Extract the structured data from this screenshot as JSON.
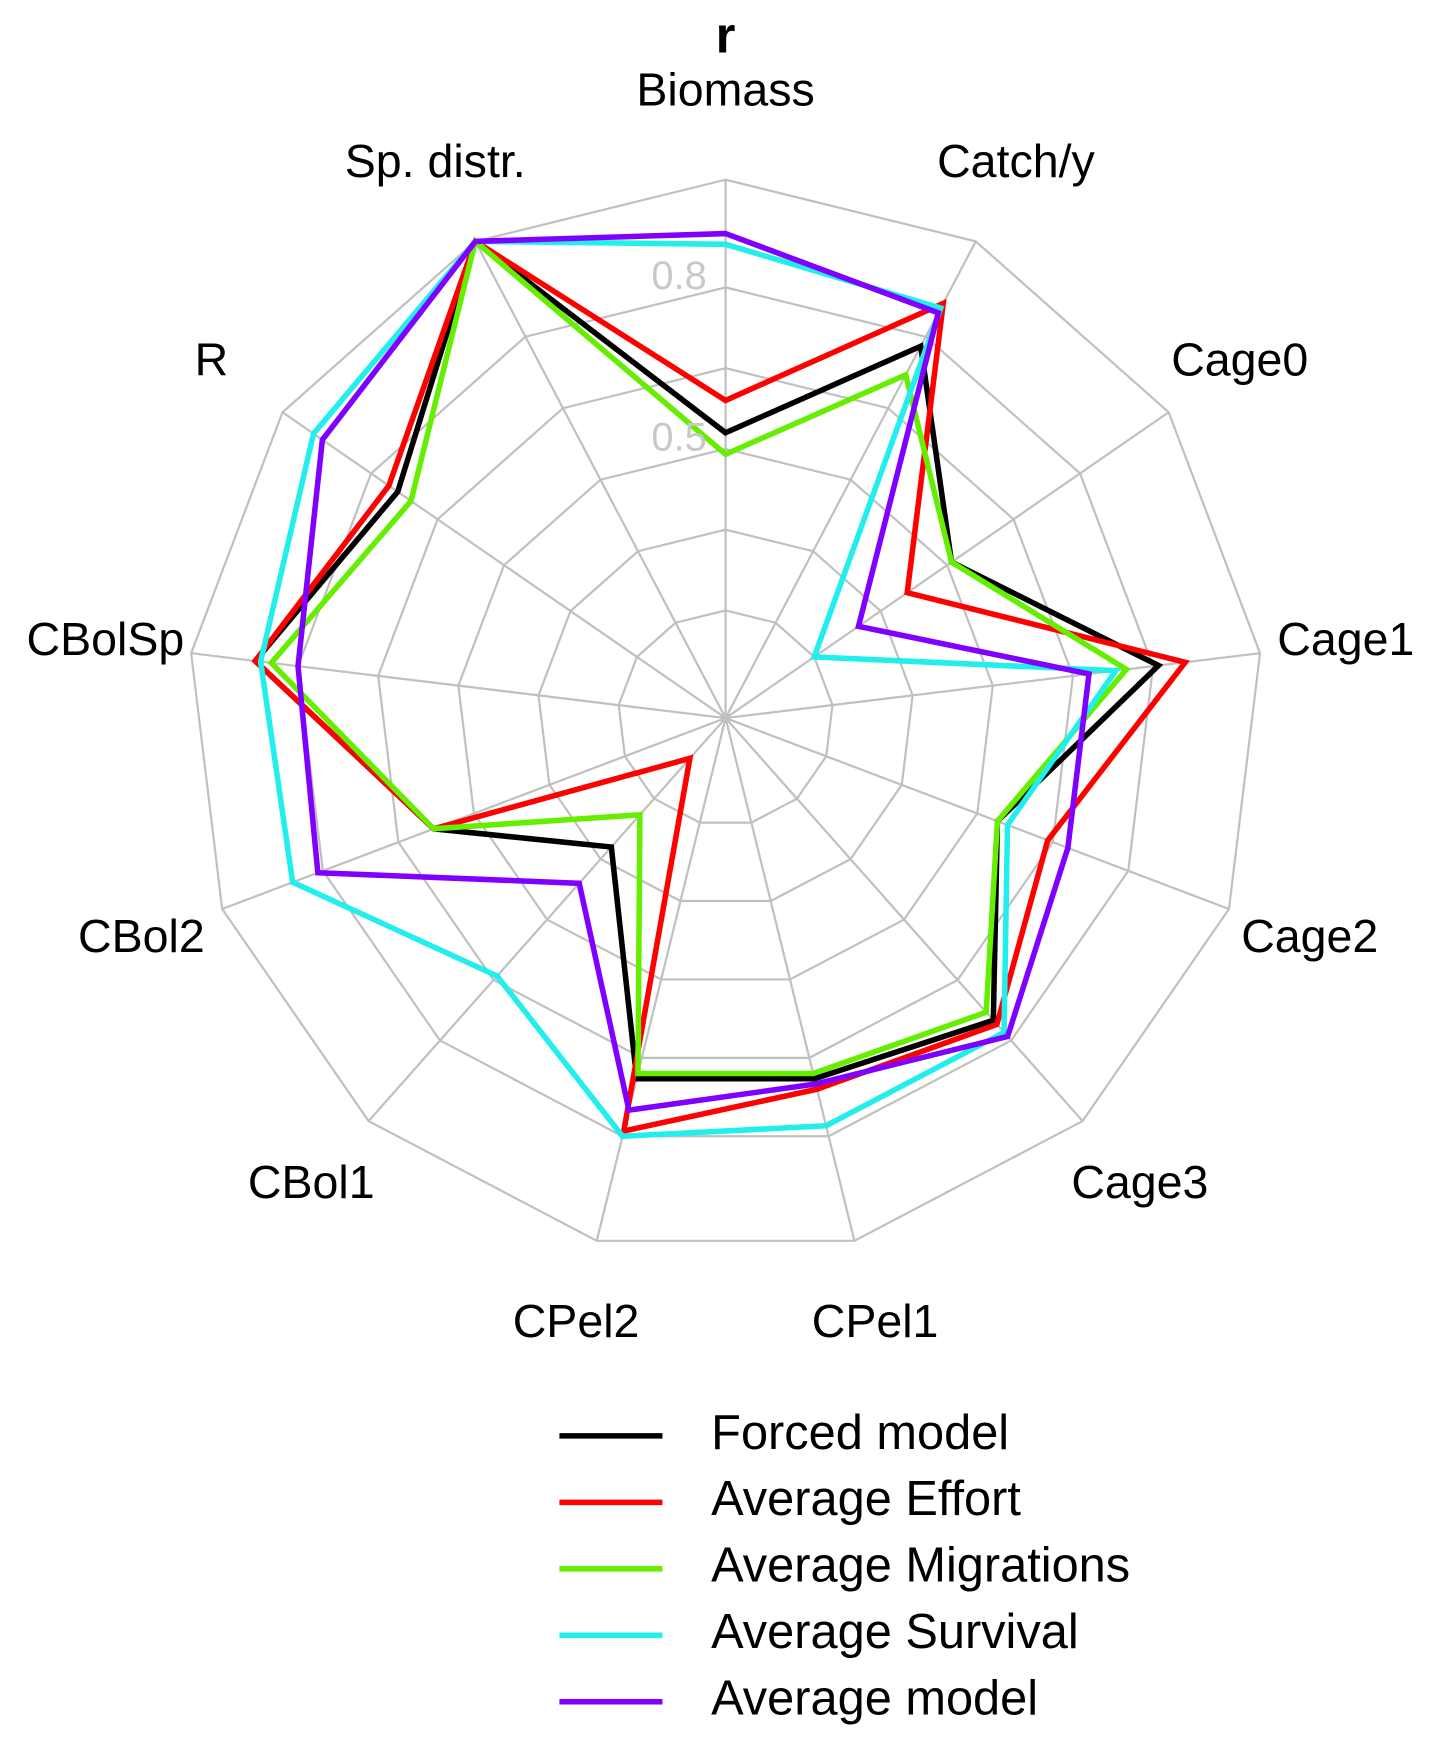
{
  "chart_data": {
    "type": "radar",
    "title": "r",
    "categories": [
      "Biomass",
      "Catch/y",
      "Cage0",
      "Cage1",
      "Cage2",
      "Cage3",
      "CPel1",
      "CPel2",
      "CBol1",
      "CBol2",
      "CBolSp",
      "R",
      "Sp. distr."
    ],
    "ylim": [
      0,
      1
    ],
    "yticks": [
      0.5,
      0.8
    ],
    "grid_rings": [
      0.2,
      0.35,
      0.65,
      1.0
    ],
    "series": [
      {
        "name": "Forced model",
        "color": "#000000",
        "values": [
          0.53,
          0.78,
          0.51,
          0.81,
          0.54,
          0.75,
          0.69,
          0.69,
          0.32,
          0.58,
          0.88,
          0.74,
          1.0
        ]
      },
      {
        "name": "Average Effort",
        "color": "#ff0000",
        "values": [
          0.59,
          0.87,
          0.41,
          0.86,
          0.64,
          0.76,
          0.71,
          0.79,
          0.1,
          0.58,
          0.88,
          0.76,
          1.0
        ]
      },
      {
        "name": "Average Migrations",
        "color": "#66ee00",
        "values": [
          0.49,
          0.72,
          0.51,
          0.75,
          0.54,
          0.73,
          0.68,
          0.68,
          0.24,
          0.58,
          0.85,
          0.71,
          1.0
        ]
      },
      {
        "name": "Average Survival",
        "color": "#22eeee",
        "values": [
          0.88,
          0.86,
          0.2,
          0.73,
          0.56,
          0.78,
          0.78,
          0.8,
          0.64,
          0.86,
          0.87,
          0.93,
          1.0
        ]
      },
      {
        "name": "Average model",
        "color": "#7f00ff",
        "values": [
          0.9,
          0.85,
          0.3,
          0.68,
          0.68,
          0.79,
          0.7,
          0.75,
          0.41,
          0.81,
          0.8,
          0.91,
          1.0
        ]
      }
    ],
    "grid": true,
    "legend": "bottom"
  }
}
